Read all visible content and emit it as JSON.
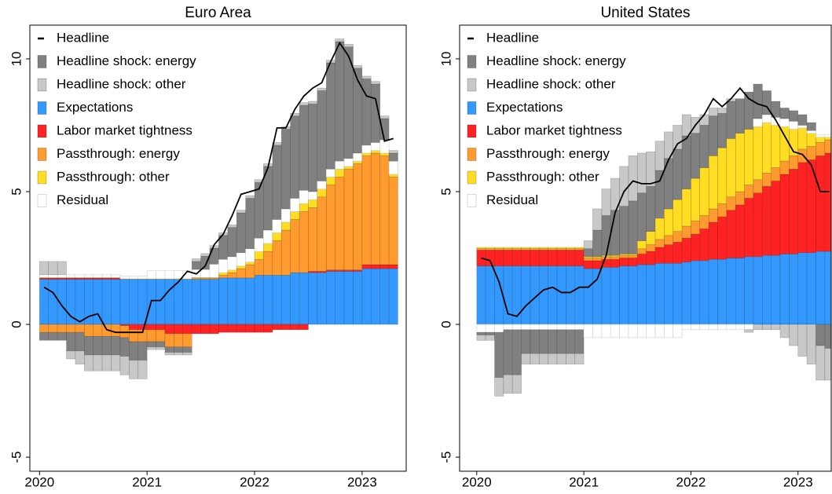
{
  "chart_data": [
    {
      "type": "bar",
      "title": "Euro Area",
      "x": [
        2020,
        2020.083,
        2020.167,
        2020.25,
        2020.333,
        2020.417,
        2020.5,
        2020.583,
        2020.667,
        2020.75,
        2020.833,
        2020.917,
        2021,
        2021.083,
        2021.167,
        2021.25,
        2021.333,
        2021.417,
        2021.5,
        2021.583,
        2021.667,
        2021.75,
        2021.833,
        2021.917,
        2022,
        2022.083,
        2022.167,
        2022.25,
        2022.333,
        2022.417,
        2022.5,
        2022.583,
        2022.667,
        2022.75,
        2022.833,
        2022.917,
        2023,
        2023.083,
        2023.167,
        2023.25
      ],
      "xlim": [
        2019.91,
        2023.41
      ],
      "xticks": [
        2020,
        2021,
        2022,
        2023
      ],
      "ylim": [
        -5.53,
        11.27
      ],
      "yticks": [
        -5,
        0,
        5,
        10
      ],
      "legend": "upper left",
      "series": [
        {
          "name": "Headline",
          "type": "line",
          "color": "#000000",
          "values": [
            1.4,
            1.2,
            0.7,
            0.3,
            0.1,
            0.3,
            0.4,
            -0.2,
            -0.3,
            -0.3,
            -0.3,
            -0.3,
            0.9,
            0.9,
            1.3,
            1.6,
            2.0,
            1.9,
            2.2,
            3.0,
            3.4,
            4.1,
            4.9,
            5.0,
            5.1,
            5.9,
            7.4,
            7.4,
            8.1,
            8.6,
            8.9,
            9.1,
            9.9,
            10.6,
            10.1,
            9.2,
            8.6,
            8.5,
            6.9,
            7.0
          ]
        },
        {
          "name": "Headline shock: energy",
          "color": "#808080",
          "values": [
            -0.3,
            -0.3,
            -0.3,
            -0.7,
            -0.7,
            -0.7,
            -0.7,
            -0.7,
            -0.7,
            -0.7,
            -0.7,
            -0.7,
            -0.2,
            -0.2,
            -0.2,
            -0.2,
            -0.2,
            0.3,
            0.5,
            0.6,
            0.9,
            1.1,
            1.5,
            1.9,
            2.1,
            2.4,
            2.8,
            3.0,
            3.1,
            3.2,
            3.3,
            3.4,
            4.0,
            4.5,
            4.2,
            3.2,
            2.5,
            2.2,
            0.8,
            0.3
          ]
        },
        {
          "name": "Headline shock: other",
          "color": "#c8c8c8",
          "values": [
            0.5,
            0.5,
            0.5,
            -0.3,
            -0.5,
            -0.6,
            -0.6,
            -0.6,
            -0.6,
            -0.7,
            -0.7,
            -0.7,
            -0.1,
            -0.1,
            -0.1,
            -0.1,
            -0.1,
            0.1,
            0.1,
            0.1,
            0.1,
            0.1,
            0.1,
            0.1,
            0.1,
            0.1,
            0.1,
            0.1,
            0.1,
            0.1,
            0.1,
            0.1,
            0.1,
            0.1,
            0.1,
            0.1,
            0.1,
            0.1,
            0.1,
            0.1
          ]
        },
        {
          "name": "Expectations",
          "color": "#3399ff",
          "values": [
            1.7,
            1.7,
            1.7,
            1.7,
            1.7,
            1.7,
            1.7,
            1.7,
            1.7,
            1.7,
            1.7,
            1.7,
            1.7,
            1.7,
            1.7,
            1.7,
            1.7,
            1.7,
            1.7,
            1.7,
            1.75,
            1.75,
            1.75,
            1.75,
            1.85,
            1.85,
            1.85,
            1.85,
            1.95,
            1.95,
            1.95,
            1.95,
            2.0,
            2.0,
            2.0,
            2.0,
            2.1,
            2.1,
            2.1,
            2.1
          ]
        },
        {
          "name": "Labor market tightness",
          "color": "#ff2222",
          "values": [
            0.05,
            0.05,
            0.05,
            0.05,
            0.05,
            0.05,
            0.05,
            0.05,
            0.05,
            -0.05,
            -0.2,
            -0.2,
            -0.2,
            -0.2,
            -0.35,
            -0.35,
            -0.35,
            -0.35,
            -0.35,
            -0.35,
            -0.3,
            -0.3,
            -0.3,
            -0.3,
            -0.3,
            -0.3,
            -0.2,
            -0.2,
            -0.2,
            -0.2,
            0.05,
            0.05,
            0.05,
            0.05,
            0.05,
            0.05,
            0.15,
            0.15,
            0.15,
            0.15
          ]
        },
        {
          "name": "Passthrough: energy",
          "color": "#ff9a2e",
          "values": [
            -0.3,
            -0.3,
            -0.3,
            -0.3,
            -0.3,
            -0.45,
            -0.45,
            -0.45,
            -0.45,
            -0.45,
            -0.45,
            -0.45,
            -0.45,
            -0.45,
            -0.5,
            -0.5,
            -0.5,
            0.05,
            0.05,
            0.05,
            0.1,
            0.2,
            0.35,
            0.5,
            0.6,
            0.9,
            1.3,
            1.7,
            2.0,
            2.3,
            2.4,
            2.8,
            3.2,
            3.5,
            3.8,
            4.0,
            4.1,
            4.2,
            4.1,
            3.3
          ]
        },
        {
          "name": "Passthrough: other",
          "color": "#ffdd22",
          "values": [
            0.02,
            0.02,
            0.02,
            0.02,
            0.02,
            0.02,
            0.02,
            0.02,
            0.02,
            0.02,
            0.02,
            0.02,
            0.02,
            0.02,
            0.02,
            0.02,
            0.02,
            0.02,
            0.02,
            0.02,
            0.1,
            0.1,
            0.1,
            0.1,
            0.3,
            0.3,
            0.3,
            0.3,
            0.3,
            0.3,
            0.3,
            0.3,
            0.3,
            0.3,
            0.1,
            0.1,
            0.1,
            0.1,
            0.1,
            0.1
          ]
        },
        {
          "name": "Residual",
          "color": "#ffffff",
          "values": [
            0.1,
            0.1,
            0.1,
            0.1,
            0.1,
            0.1,
            0.1,
            0.1,
            0.1,
            0.1,
            0.1,
            0.1,
            0.3,
            0.3,
            0.3,
            0.3,
            0.3,
            0.3,
            0.3,
            0.5,
            0.5,
            0.5,
            0.5,
            0.5,
            0.5,
            0.5,
            0.5,
            0.5,
            0.5,
            0.5,
            0.3,
            0.3,
            0.3,
            0.3,
            0.3,
            0.3,
            0.3,
            0.3,
            0.5,
            0.5
          ]
        }
      ]
    },
    {
      "type": "bar",
      "title": "United States",
      "x": [
        2020,
        2020.083,
        2020.167,
        2020.25,
        2020.333,
        2020.417,
        2020.5,
        2020.583,
        2020.667,
        2020.75,
        2020.833,
        2020.917,
        2021,
        2021.083,
        2021.167,
        2021.25,
        2021.333,
        2021.417,
        2021.5,
        2021.583,
        2021.667,
        2021.75,
        2021.833,
        2021.917,
        2022,
        2022.083,
        2022.167,
        2022.25,
        2022.333,
        2022.417,
        2022.5,
        2022.583,
        2022.667,
        2022.75,
        2022.833,
        2022.917,
        2023,
        2023.083,
        2023.167,
        2023.25
      ],
      "xlim": [
        2019.84,
        2023.31
      ],
      "xticks": [
        2020,
        2021,
        2022,
        2023
      ],
      "ylim": [
        -5.53,
        11.27
      ],
      "yticks": [
        -5,
        0,
        5,
        10
      ],
      "legend": "upper left",
      "series": [
        {
          "name": "Headline",
          "type": "line",
          "color": "#000000",
          "values": [
            2.5,
            2.4,
            1.6,
            0.4,
            0.3,
            0.7,
            1.0,
            1.3,
            1.4,
            1.2,
            1.2,
            1.4,
            1.4,
            1.7,
            2.6,
            4.2,
            5.0,
            5.4,
            5.3,
            5.3,
            5.4,
            6.2,
            6.8,
            7.0,
            7.5,
            7.9,
            8.5,
            8.2,
            8.5,
            8.9,
            8.5,
            8.3,
            8.2,
            7.7,
            7.1,
            6.5,
            6.4,
            6.0,
            5.0,
            5.0
          ]
        },
        {
          "name": "Headline shock: energy",
          "color": "#808080",
          "values": [
            -0.1,
            -0.1,
            -1.7,
            -1.7,
            -1.7,
            -0.9,
            -0.9,
            -0.9,
            -0.9,
            -0.9,
            -0.9,
            -0.9,
            0.3,
            1.0,
            1.5,
            1.7,
            1.8,
            2.0,
            1.8,
            1.7,
            1.8,
            1.9,
            1.9,
            2.0,
            1.7,
            1.6,
            1.5,
            1.3,
            1.4,
            1.3,
            1.4,
            1.3,
            0.9,
            0.6,
            0.4,
            0.4,
            0.4,
            0.3,
            -0.8,
            -0.9
          ]
        },
        {
          "name": "Headline shock: other",
          "color": "#c8c8c8",
          "values": [
            -0.2,
            -0.2,
            -0.7,
            -0.7,
            -0.7,
            -0.4,
            -0.4,
            -0.4,
            -0.4,
            -0.4,
            -0.4,
            -0.4,
            0.3,
            0.8,
            1.0,
            1.2,
            1.5,
            1.7,
            1.5,
            1.3,
            1.1,
            1.0,
            0.9,
            0.8,
            0.6,
            0.4,
            0.3,
            0.2,
            0.1,
            0.0,
            -0.1,
            -0.2,
            -0.2,
            -0.2,
            -0.5,
            -0.8,
            -1.2,
            -1.5,
            -1.3,
            -1.2
          ]
        },
        {
          "name": "Expectations",
          "color": "#3399ff",
          "values": [
            2.2,
            2.2,
            2.2,
            2.2,
            2.2,
            2.2,
            2.2,
            2.2,
            2.2,
            2.2,
            2.2,
            2.2,
            2.1,
            2.1,
            2.15,
            2.15,
            2.2,
            2.2,
            2.25,
            2.25,
            2.3,
            2.3,
            2.3,
            2.35,
            2.4,
            2.4,
            2.45,
            2.45,
            2.5,
            2.5,
            2.55,
            2.55,
            2.6,
            2.6,
            2.65,
            2.65,
            2.7,
            2.7,
            2.75,
            2.75
          ]
        },
        {
          "name": "Labor market tightness",
          "color": "#ff2222",
          "values": [
            0.6,
            0.6,
            0.6,
            0.6,
            0.6,
            0.6,
            0.6,
            0.6,
            0.6,
            0.6,
            0.6,
            0.6,
            0.3,
            0.3,
            0.3,
            0.3,
            0.3,
            0.3,
            0.4,
            0.5,
            0.6,
            0.7,
            0.8,
            0.9,
            1.0,
            1.2,
            1.4,
            1.6,
            1.8,
            2.0,
            2.2,
            2.4,
            2.6,
            2.8,
            3.0,
            3.2,
            3.4,
            3.5,
            3.6,
            3.7
          ]
        },
        {
          "name": "Passthrough: energy",
          "color": "#ff9a2e",
          "values": [
            0.05,
            0.05,
            0.05,
            0.05,
            0.05,
            0.05,
            0.05,
            0.05,
            0.05,
            0.05,
            0.05,
            0.05,
            0.1,
            0.1,
            0.1,
            0.1,
            0.1,
            0.1,
            0.2,
            0.25,
            0.3,
            0.35,
            0.4,
            0.45,
            0.5,
            0.5,
            0.5,
            0.5,
            0.5,
            0.5,
            0.5,
            0.5,
            0.5,
            0.5,
            0.5,
            0.5,
            0.5,
            0.5,
            0.5,
            0.5
          ]
        },
        {
          "name": "Passthrough: other",
          "color": "#ffdd22",
          "values": [
            0.05,
            0.05,
            0.05,
            0.05,
            0.05,
            0.05,
            0.05,
            0.05,
            0.05,
            0.05,
            0.05,
            0.05,
            0.05,
            0.05,
            0.05,
            0.05,
            0.05,
            0.05,
            0.3,
            0.5,
            0.8,
            1.0,
            1.2,
            1.4,
            1.6,
            1.8,
            2.0,
            2.1,
            2.2,
            2.2,
            2.1,
            2.0,
            1.9,
            1.6,
            1.3,
            1.0,
            0.8,
            0.5,
            0.2,
            0.1
          ]
        },
        {
          "name": "Residual",
          "color": "#ffffff",
          "values": [
            -0.3,
            -0.3,
            -0.3,
            -0.2,
            -0.2,
            -0.2,
            -0.2,
            -0.2,
            -0.2,
            -0.2,
            -0.2,
            -0.2,
            -0.5,
            -0.5,
            -0.5,
            -0.5,
            -0.5,
            -0.5,
            -0.5,
            -0.5,
            -0.5,
            -0.5,
            -0.5,
            -0.2,
            -0.2,
            -0.2,
            -0.2,
            -0.2,
            -0.2,
            -0.2,
            -0.2,
            0.3,
            0.3,
            0.3,
            0.3,
            0.3,
            0.1,
            0.1,
            0.1,
            0.1
          ]
        }
      ]
    }
  ]
}
